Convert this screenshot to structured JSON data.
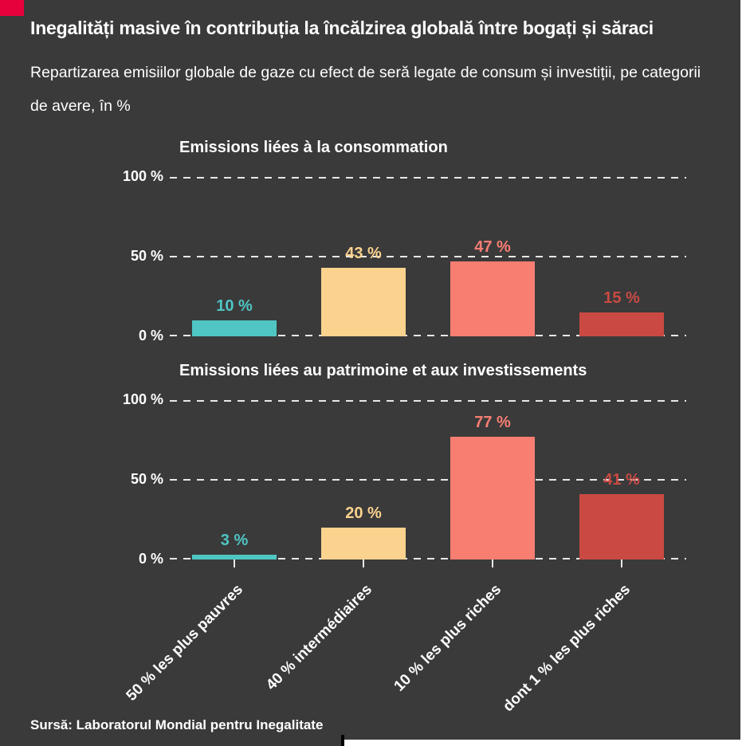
{
  "header": {
    "title": "Inegalități masive în contribuția la încălzirea globală între bogați și săraci",
    "subtitle": "Repartizarea emisiilor globale de gaze cu efect de seră legate de consum și investiții, pe categorii de avere, în %"
  },
  "footer": {
    "source": "Sursă: Laboratorul Mondial pentru Inegalitate"
  },
  "colors": {
    "background": "#3a3a3b",
    "accent": "#e6003c",
    "text": "#ffffff",
    "grid": "#e8e8e8",
    "bar_colors": [
      "#4fc6c3",
      "#fbd38f",
      "#f87e72",
      "#ca4a43"
    ]
  },
  "chart_data": [
    {
      "type": "bar",
      "title": "Emissions liées à la consommation",
      "categories": [
        "50 % les plus pauvres",
        "40 % intermédiaires",
        "10 % les plus riches",
        "dont 1 % les plus riches"
      ],
      "values": [
        10,
        43,
        47,
        15
      ],
      "value_labels": [
        "10 %",
        "43 %",
        "47 %",
        "15 %"
      ],
      "bar_colors": [
        "#4fc6c3",
        "#fbd38f",
        "#f87e72",
        "#ca4a43"
      ],
      "ylim": [
        0,
        100
      ],
      "yticks": [
        "100 %",
        "50 %",
        "0 %"
      ],
      "grid": "dashed-horizontal",
      "legend": "none"
    },
    {
      "type": "bar",
      "title": "Emissions liées au patrimoine et aux investissements",
      "categories": [
        "50 % les plus pauvres",
        "40 % intermédiaires",
        "10 % les plus riches",
        "dont 1 % les plus riches"
      ],
      "values": [
        3,
        20,
        77,
        41
      ],
      "value_labels": [
        "3 %",
        "20 %",
        "77 %",
        "41 %"
      ],
      "bar_colors": [
        "#4fc6c3",
        "#fbd38f",
        "#f87e72",
        "#ca4a43"
      ],
      "ylim": [
        0,
        100
      ],
      "yticks": [
        "100 %",
        "50 %",
        "0 %"
      ],
      "grid": "dashed-horizontal",
      "legend": "none"
    }
  ]
}
